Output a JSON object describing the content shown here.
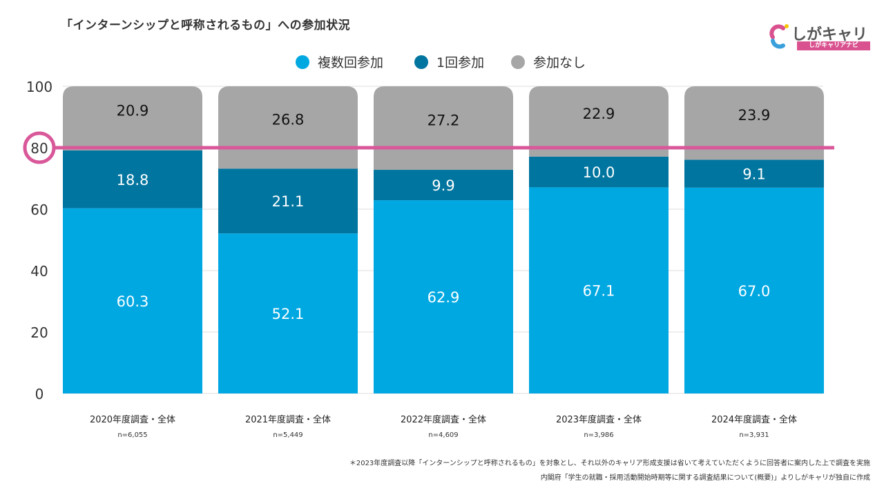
{
  "title": "「インターンシップと呼称されるもの」への参加状況",
  "logo": {
    "name": "しがキャリ",
    "subtitle": "しがキャリアナビ"
  },
  "colors": {
    "multi": "#00a8e2",
    "once": "#00759f",
    "none": "#a6a6a6",
    "highlight": "#d9589a",
    "logo_pink": "#d9528f",
    "logo_blue": "#3aa0dc",
    "logo_dot": "#f5c400"
  },
  "chart_data": {
    "type": "bar",
    "stacked": true,
    "title": "「インターンシップと呼称されるもの」への参加状況",
    "categories": [
      "2020年度調査・全体",
      "2021年度調査・全体",
      "2022年度調査・全体",
      "2023年度調査・全体",
      "2024年度調査・全体"
    ],
    "sample_sizes": [
      "n=6,055",
      "n=5,449",
      "n=4,609",
      "n=3,986",
      "n=3,931"
    ],
    "series": [
      {
        "name": "複数回参加",
        "values": [
          60.3,
          52.1,
          62.9,
          67.1,
          67.0
        ],
        "labels": [
          "60.3",
          "52.1",
          "62.9",
          "67.1",
          "67.0"
        ]
      },
      {
        "name": "1回参加",
        "values": [
          18.8,
          21.1,
          9.9,
          10.0,
          9.1
        ],
        "labels": [
          "18.8",
          "21.1",
          "9.9",
          "10.0",
          "9.1"
        ]
      },
      {
        "name": "参加なし",
        "values": [
          20.9,
          26.8,
          27.2,
          22.9,
          23.9
        ],
        "labels": [
          "20.9",
          "26.8",
          "27.2",
          "22.9",
          "23.9"
        ]
      }
    ],
    "yticks": [
      "0",
      "20",
      "40",
      "60",
      "80",
      "100"
    ],
    "ylim": [
      0,
      100
    ],
    "reference_line": 80,
    "highlighted_tick": "80",
    "legend_position": "top-center",
    "grid": true,
    "xlabel": "",
    "ylabel": ""
  },
  "notes": [
    "＊2023年度調査以降「インターンシップと呼称されるもの」を対象とし、それ以外のキャリア形成支援は省いて考えていただくように回答者に案内した上で調査を実施",
    "内閣府「学生の就職・採用活動開始時期等に関する調査結果について(概要)」よりしがキャリが独自に作成"
  ]
}
